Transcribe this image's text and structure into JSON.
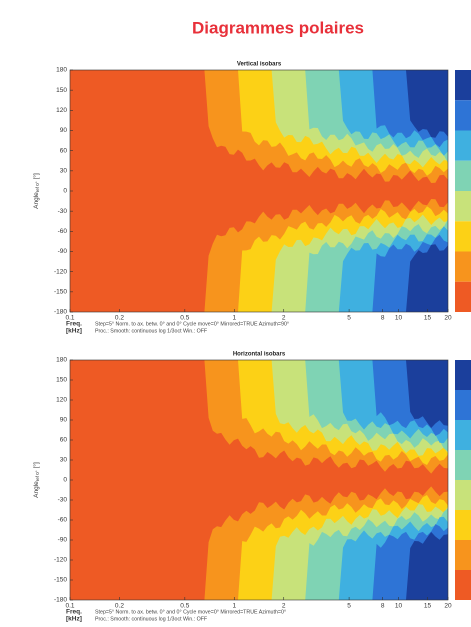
{
  "title": "Diagrammes polaires",
  "chart_data": [
    {
      "type": "contour",
      "title": "Vertical isobars",
      "ylabel": "Angle",
      "ylabel_sub": "ref 0°",
      "ylabel_unit": "[°]",
      "xlabel": "Freq.",
      "xlabel_unit": "[kHz]",
      "notes": [
        "Step=5°  Norm. to ax. betw. 0° and 0°  Cycle move=0°  Mirrored=TRUE  Azimuth=90°",
        "Proc.: Smooth: continuous log 1/3oct  Win.: OFF"
      ],
      "xscale": "log",
      "xlim": [
        0.1,
        20
      ],
      "xticks": [
        0.1,
        0.2,
        0.5,
        1,
        2,
        5,
        8,
        10,
        15,
        20
      ],
      "ylim": [
        -180,
        180
      ],
      "yticks": [
        180,
        150,
        120,
        90,
        60,
        30,
        0,
        -30,
        -60,
        -90,
        -120,
        -150,
        -180
      ]
    },
    {
      "type": "contour",
      "title": "Horizontal isobars",
      "ylabel": "Angle",
      "ylabel_sub": "ref 0°",
      "ylabel_unit": "[°]",
      "xlabel": "Freq.",
      "xlabel_unit": "[kHz]",
      "notes": [
        "Step=5°  Norm. to ax. betw. 0° and 0°  Cycle move=0°  Mirrored=TRUE  Azimuth=0°",
        "Proc.: Smooth: continuous log 1/3oct  Win.: OFF"
      ],
      "xscale": "log",
      "xlim": [
        0.1,
        20
      ],
      "xticks": [
        0.1,
        0.2,
        0.5,
        1,
        2,
        5,
        8,
        10,
        15,
        20
      ],
      "ylim": [
        -180,
        180
      ],
      "yticks": [
        180,
        150,
        120,
        90,
        60,
        30,
        0,
        -30,
        -60,
        -90,
        -120,
        -150,
        -180
      ]
    }
  ]
}
